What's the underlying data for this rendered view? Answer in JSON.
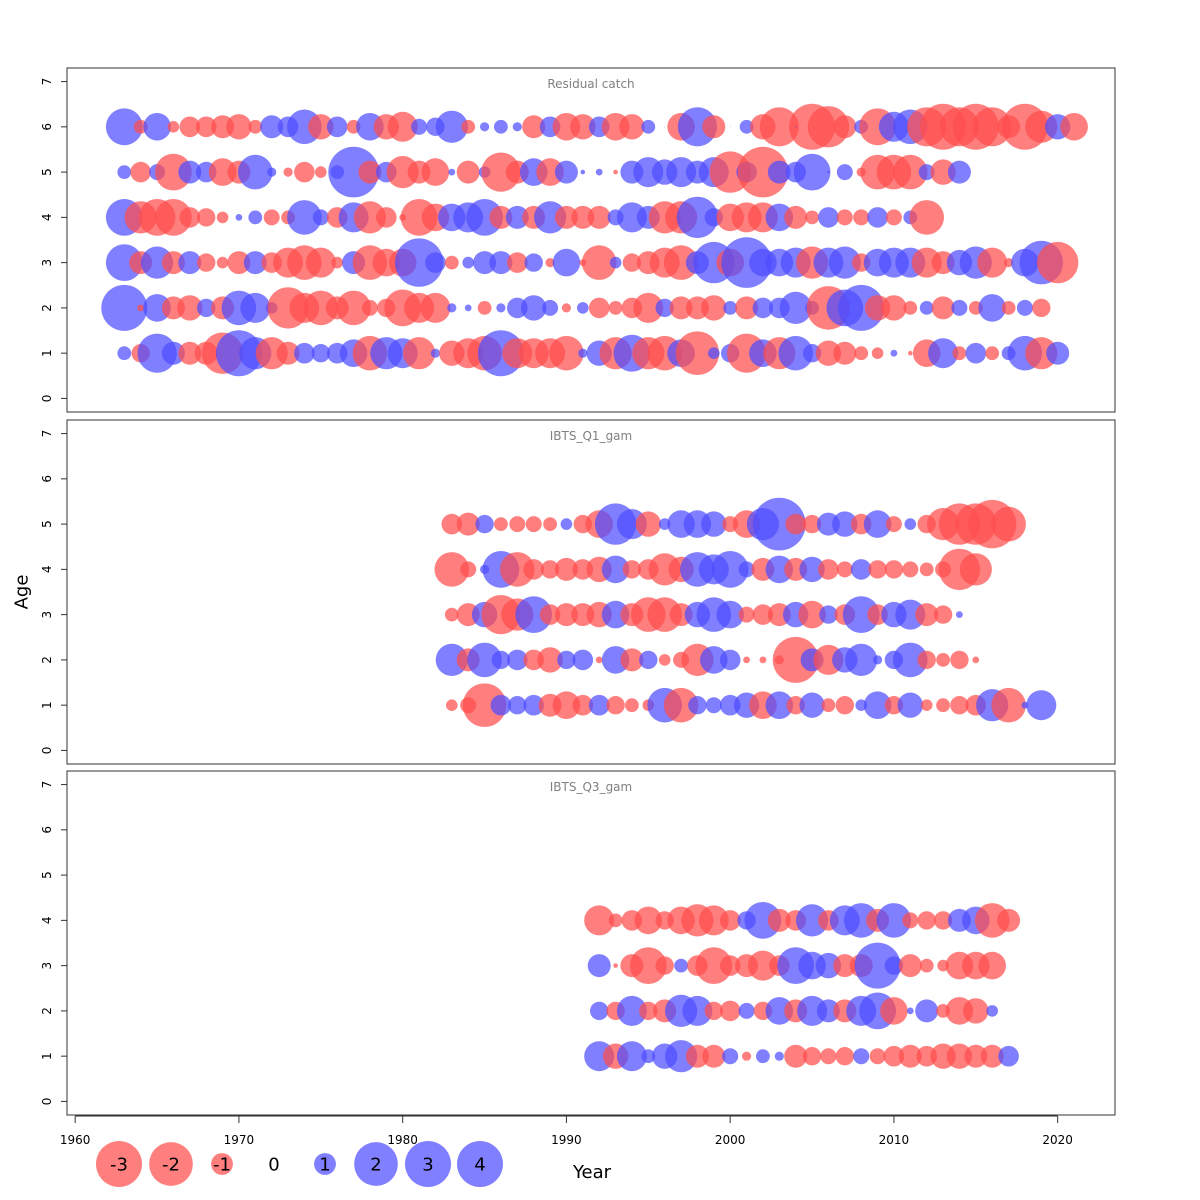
{
  "chart_data": {
    "type": "scatter",
    "subtype": "bubble-residuals",
    "xlabel": "Year",
    "ylabel": "Age",
    "xlim": [
      1959.5,
      2023.5
    ],
    "xticks": [
      1960,
      1970,
      1980,
      1990,
      2000,
      2010,
      2020
    ],
    "ylim": [
      -0.3,
      7.3
    ],
    "yticks": [
      0,
      1,
      2,
      3,
      4,
      5,
      6,
      7
    ],
    "colors": {
      "negative": "#ff4d4d",
      "positive": "#4d4dff"
    },
    "size_encoding": "radius proportional to absolute residual",
    "legend": {
      "placement": "bottom-left",
      "values": [
        -3,
        -2,
        -1,
        0,
        1,
        2,
        3,
        4
      ],
      "labels": [
        "-3",
        "-2",
        "-1",
        "0",
        "1",
        "2",
        "3",
        "4"
      ]
    },
    "panels": [
      {
        "title": "Residual catch",
        "start_year": 1963,
        "residuals": {
          "6": [
            1.6,
            -0.6,
            1.2,
            -0.5,
            -0.9,
            -0.9,
            -1.0,
            -1.1,
            -0.6,
            1.0,
            0.9,
            1.5,
            -1.1,
            0.9,
            -0.6,
            1.2,
            -1.1,
            -1.3,
            0.7,
            0.8,
            1.4,
            -0.6,
            0.4,
            0.6,
            0.4,
            -1.0,
            0.9,
            -1.2,
            -1.1,
            0.9,
            -1.2,
            -1.1,
            0.6,
            0.0,
            -1.2,
            1.7,
            -1.0,
            0.0,
            0.6,
            -1.1,
            -1.7,
            0.1,
            -2.0,
            -1.8,
            -1.0,
            0.6,
            -1.6,
            1.3,
            1.5,
            -1.7,
            -2.0,
            -1.7,
            -2.0,
            -1.7,
            -1.0,
            -2.0,
            -1.4,
            1.1,
            -1.2
          ],
          "5": [
            0.6,
            -0.9,
            0.7,
            -1.6,
            1.0,
            0.9,
            -1.2,
            -1.0,
            1.5,
            0.4,
            -0.4,
            -0.9,
            -0.5,
            0.6,
            2.2,
            -1.0,
            0.9,
            -1.4,
            -1.0,
            -1.2,
            0.3,
            -1.0,
            0.5,
            -1.7,
            -1.0,
            1.2,
            -1.2,
            1.0,
            0.2,
            0.3,
            -0.2,
            1.0,
            1.3,
            1.1,
            1.3,
            1.0,
            1.3,
            -1.8,
            0.9,
            -2.2,
            1.0,
            0.9,
            1.6,
            0.1,
            0.7,
            -0.4,
            -1.5,
            -1.5,
            -1.5,
            0.7,
            -1.1,
            1.0
          ],
          "4": [
            1.6,
            -1.4,
            -1.6,
            -1.6,
            -0.9,
            -0.8,
            -0.5,
            0.3,
            0.6,
            -0.7,
            -0.6,
            1.5,
            0.7,
            -0.9,
            1.3,
            -1.4,
            -0.9,
            -0.3,
            -1.6,
            -1.2,
            1.2,
            1.3,
            1.6,
            -1.0,
            1.0,
            -1.0,
            1.4,
            -1.0,
            -1.0,
            -1.0,
            0.7,
            1.3,
            1.0,
            -1.4,
            -1.4,
            1.8,
            0.8,
            -1.2,
            -1.3,
            -1.3,
            1.2,
            -1.0,
            -0.6,
            0.9,
            -0.7,
            -0.7,
            0.9,
            -0.7,
            0.6,
            -1.5
          ]
        }
      },
      {
        "title": "IBTS_Q1_gam",
        "start_year": 1983,
        "residuals": {}
      },
      {
        "title": "IBTS_Q3_gam",
        "start_year": 1992,
        "residuals": {}
      }
    ]
  }
}
